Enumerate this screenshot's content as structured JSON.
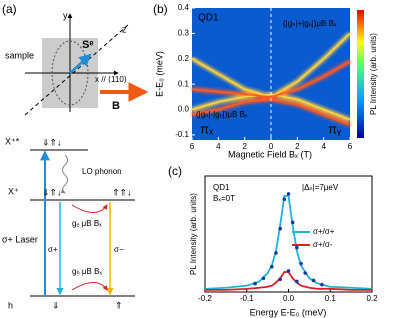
{
  "panels": {
    "a": "(a)",
    "b": "(b)",
    "c": "(c)"
  },
  "diagram": {
    "y_axis": "y",
    "z_axis": "z",
    "sample": "sample",
    "spin": "Sᵉ",
    "x_axis": "x // ⟨110⟩",
    "field": "B",
    "levels": {
      "top": "X⁺*",
      "mid": "X⁺",
      "bottom": "h"
    },
    "spins": {
      "top": "⇓⇑↓",
      "mid_left": "⇓⇑↓",
      "mid_right": "⇑⇑↓",
      "bottom_left": "⇓",
      "bottom_right": "⇑"
    },
    "phonon": "LO phonon",
    "laser": "σ+ Laser",
    "left_transition": "σ+",
    "right_transition": "σ−",
    "electron_split": "gₑ μB Bₓ",
    "hole_split": "gₕ μB Bₓ"
  },
  "chart_data": [
    {
      "type": "heatmap",
      "xlabel": "Magnetic Field Bₓ (T)",
      "ylabel": "E-E₀ (meV)",
      "colorbar_label": "PL Intensity (arb. units)",
      "annotations": [
        "QD1",
        "πₓ",
        "πᵧ",
        "(|gₕ|+|gₑ|)μB Bₓ",
        "(|gₕ|-|gₑ|)μB Bₓ"
      ],
      "xlim": [
        -6,
        6
      ],
      "ylim": [
        -0.12,
        0.4
      ],
      "xticks": [
        {
          "value": -6,
          "label": "6"
        },
        {
          "value": -4,
          "label": "4"
        },
        {
          "value": -2,
          "label": "2"
        },
        0,
        2,
        4,
        6
      ],
      "yticks": [
        -0.1,
        {
          "value": 0,
          "label": "0.0"
        },
        0.1,
        0.2,
        0.3,
        0.4
      ],
      "series": [
        {
          "color": "#ffd23c",
          "x": [
            -6,
            -4,
            -2,
            0,
            2,
            4,
            6
          ],
          "values": [
            0.2,
            0.14,
            0.08,
            0.05,
            0.11,
            0.2,
            0.3
          ]
        },
        {
          "color": "#ffd23c",
          "x": [
            -6,
            -4,
            -2,
            0,
            2,
            4,
            6
          ],
          "values": [
            0.0,
            0.03,
            0.05,
            0.06,
            0.04,
            0.0,
            -0.04
          ]
        },
        {
          "color": "#ff5a20",
          "x": [
            -6,
            -4,
            -2,
            0,
            2,
            4,
            6
          ],
          "values": [
            0.08,
            0.07,
            0.06,
            0.05,
            0.08,
            0.13,
            0.19
          ]
        },
        {
          "color": "#ff5a20",
          "x": [
            -6,
            -4,
            -2,
            0,
            2,
            4,
            6
          ],
          "values": [
            -0.02,
            0.0,
            0.03,
            0.04,
            0.02,
            -0.02,
            -0.06
          ]
        }
      ]
    },
    {
      "type": "line",
      "xlabel": "Energy E-E₀ (meV)",
      "ylabel": "PL Intensity (arb. units)",
      "annotations": [
        "QD1",
        "Bₓ=0T",
        "|Δₙ|=7μeV"
      ],
      "xlim": [
        -0.2,
        0.2
      ],
      "ylim": [
        0,
        1.1
      ],
      "xticks": [
        -0.2,
        -0.1,
        {
          "value": 0,
          "label": "0.0"
        },
        0.1,
        0.2
      ],
      "x": [
        -0.2,
        -0.15,
        -0.1,
        -0.07,
        -0.05,
        -0.04,
        -0.03,
        -0.02,
        -0.01,
        0,
        0.01,
        0.02,
        0.03,
        0.05,
        0.07,
        0.1,
        0.15,
        0.2
      ],
      "series": [
        {
          "name": "σ+/σ+",
          "color": "#1fb3d8",
          "values": [
            0.03,
            0.04,
            0.06,
            0.1,
            0.18,
            0.25,
            0.39,
            0.63,
            0.91,
            0.91,
            0.63,
            0.39,
            0.25,
            0.13,
            0.08,
            0.05,
            0.04,
            0.03
          ]
        },
        {
          "name": "σ+/σ-",
          "color": "#d8202a",
          "values": [
            0.02,
            0.02,
            0.03,
            0.04,
            0.05,
            0.06,
            0.09,
            0.13,
            0.19,
            0.19,
            0.13,
            0.09,
            0.06,
            0.04,
            0.03,
            0.03,
            0.02,
            0.02
          ]
        }
      ],
      "points": {
        "color": "#1a3a9a",
        "x": [
          -0.08,
          -0.06,
          -0.04,
          -0.03,
          -0.02,
          -0.01,
          0,
          0.01,
          0.02,
          0.03,
          0.04,
          0.06,
          0.08,
          -0.02,
          0,
          0.02
        ],
        "values": [
          0.08,
          0.13,
          0.24,
          0.37,
          0.6,
          0.88,
          0.93,
          0.66,
          0.42,
          0.27,
          0.18,
          0.11,
          0.07,
          0.12,
          0.2,
          0.1
        ]
      }
    }
  ]
}
